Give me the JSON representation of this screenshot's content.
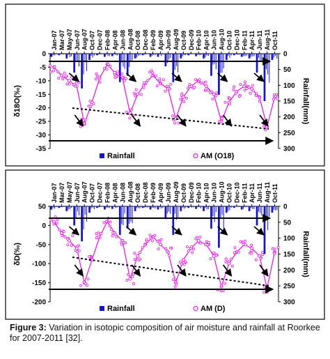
{
  "figure": {
    "caption_label": "Figure 3:",
    "caption_text": " Variation in isotopic composition of air moisture and rainfall at Roorkee for 2007-2011 [32]."
  },
  "chart_data": [
    {
      "type": "line",
      "ylabel": "δ18O(‰)",
      "y2label": "Rainfall(mm)",
      "ylim": [
        -35,
        0
      ],
      "y2lim": [
        0,
        300
      ],
      "y2_inverted": true,
      "yticks": [
        "0",
        "-5",
        "-10",
        "-15",
        "-20",
        "-25",
        "-30",
        "-35"
      ],
      "y2ticks": [
        "0",
        "50",
        "100",
        "150",
        "200",
        "250",
        "300"
      ],
      "x_categories": [
        "Jan-07",
        "Mar-07",
        "May-07",
        "Jun-07",
        "Aug-07",
        "Oct-07",
        "Dec-07",
        "Feb-08",
        "Apr-08",
        "Jun-08",
        "Aug-08",
        "Oct-08",
        "Dec-08",
        "Feb-09",
        "Apr-09",
        "Jun-09",
        "Aug-09",
        "Oct-09",
        "Dec-09",
        "Feb-10",
        "Apr-10",
        "Jun-10",
        "Aug-10",
        "Oct-10",
        "Dec-10",
        "Feb-11",
        "Apr-11",
        "Jun-11",
        "Aug-11",
        "Oct-11"
      ],
      "legend": [
        {
          "name": "Rainfall",
          "color": "#1414c8",
          "marker": "square"
        },
        {
          "name": "AM (O18)",
          "color": "#e020e0",
          "marker": "circle"
        }
      ],
      "series": [
        {
          "name": "AM (O18)",
          "x": [
            "Jan-07",
            "Mar-07",
            "May-07",
            "Jun-07",
            "Aug-07",
            "Oct-07",
            "Dec-07",
            "Feb-08",
            "Apr-08",
            "Jun-08",
            "Aug-08",
            "Oct-08",
            "Dec-08",
            "Feb-09",
            "Apr-09",
            "Jun-09",
            "Aug-09",
            "Oct-09",
            "Dec-09",
            "Feb-10",
            "Apr-10",
            "Jun-10",
            "Aug-10",
            "Oct-10",
            "Dec-10",
            "Feb-11",
            "Apr-11",
            "Jun-11",
            "Aug-11",
            "Oct-11"
          ],
          "values": [
            -5,
            -8,
            -10,
            -12,
            -26,
            -18,
            -9,
            -4,
            -7,
            -9,
            -22,
            -15,
            -11,
            -8,
            -11,
            -13,
            -24,
            -16,
            -12,
            -10,
            -12,
            -15,
            -25,
            -18,
            -14,
            -12,
            -13,
            -16,
            -27,
            -16
          ]
        },
        {
          "name": "Rainfall",
          "x": [
            "Jan-07",
            "Mar-07",
            "May-07",
            "Jun-07",
            "Aug-07",
            "Oct-07",
            "Dec-07",
            "Feb-08",
            "Apr-08",
            "Jun-08",
            "Aug-08",
            "Oct-08",
            "Dec-08",
            "Feb-09",
            "Apr-09",
            "Jun-09",
            "Aug-09",
            "Oct-09",
            "Dec-09",
            "Feb-10",
            "Apr-10",
            "Jun-10",
            "Aug-10",
            "Oct-10",
            "Dec-10",
            "Feb-11",
            "Apr-11",
            "Jun-11",
            "Aug-11",
            "Oct-11"
          ],
          "values": [
            10,
            5,
            15,
            60,
            110,
            20,
            5,
            10,
            8,
            90,
            70,
            15,
            5,
            10,
            10,
            40,
            90,
            15,
            5,
            8,
            15,
            70,
            130,
            20,
            5,
            10,
            15,
            60,
            150,
            20
          ]
        }
      ]
    },
    {
      "type": "line",
      "ylabel": "δD(‰)",
      "y2label": "Rainfall(mm)",
      "ylim": [
        -200,
        50
      ],
      "y2lim": [
        0,
        300
      ],
      "y2_inverted": true,
      "yticks": [
        "50",
        "0",
        "-50",
        "-100",
        "-150",
        "-200"
      ],
      "y2ticks": [
        "0",
        "50",
        "100",
        "150",
        "200",
        "250",
        "300"
      ],
      "x_categories": [
        "Jan-07",
        "Mar-07",
        "May-07",
        "Jun-07",
        "Aug-07",
        "Oct-07",
        "Dec-07",
        "Feb-08",
        "Apr-08",
        "Jun-08",
        "Aug-08",
        "Oct-08",
        "Dec-08",
        "Feb-09",
        "Apr-09",
        "Jun-09",
        "Aug-09",
        "Oct-09",
        "Dec-09",
        "Feb-10",
        "Apr-10",
        "Jun-10",
        "Aug-10",
        "Oct-10",
        "Dec-10",
        "Feb-11",
        "Apr-11",
        "Jun-11",
        "Aug-11",
        "Oct-11"
      ],
      "legend": [
        {
          "name": "Rainfall",
          "color": "#1414c8",
          "marker": "square"
        },
        {
          "name": "AM (D)",
          "color": "#e020e0",
          "marker": "circle"
        }
      ],
      "series": [
        {
          "name": "AM (D)",
          "x": [
            "Jan-07",
            "Mar-07",
            "May-07",
            "Jun-07",
            "Aug-07",
            "Oct-07",
            "Dec-07",
            "Feb-08",
            "Apr-08",
            "Jun-08",
            "Aug-08",
            "Oct-08",
            "Dec-08",
            "Feb-09",
            "Apr-09",
            "Jun-09",
            "Aug-09",
            "Oct-09",
            "Dec-09",
            "Feb-10",
            "Apr-10",
            "Jun-10",
            "Aug-10",
            "Oct-10",
            "Dec-10",
            "Feb-11",
            "Apr-11",
            "Jun-11",
            "Aug-11",
            "Oct-11"
          ],
          "values": [
            10,
            -20,
            -40,
            -60,
            -150,
            -90,
            -30,
            10,
            -20,
            -40,
            -140,
            -80,
            -50,
            -30,
            -50,
            -70,
            -150,
            -90,
            -60,
            -40,
            -50,
            -80,
            -160,
            -100,
            -70,
            -50,
            -60,
            -80,
            -165,
            -70
          ]
        },
        {
          "name": "Rainfall",
          "x": [
            "Jan-07",
            "Mar-07",
            "May-07",
            "Jun-07",
            "Aug-07",
            "Oct-07",
            "Dec-07",
            "Feb-08",
            "Apr-08",
            "Jun-08",
            "Aug-08",
            "Oct-08",
            "Dec-08",
            "Feb-09",
            "Apr-09",
            "Jun-09",
            "Aug-09",
            "Oct-09",
            "Dec-09",
            "Feb-10",
            "Apr-10",
            "Jun-10",
            "Aug-10",
            "Oct-10",
            "Dec-10",
            "Feb-11",
            "Apr-11",
            "Jun-11",
            "Aug-11",
            "Oct-11"
          ],
          "values": [
            10,
            5,
            15,
            60,
            110,
            20,
            5,
            10,
            8,
            90,
            70,
            15,
            5,
            10,
            10,
            40,
            90,
            15,
            5,
            8,
            15,
            70,
            130,
            20,
            5,
            10,
            15,
            60,
            150,
            20
          ]
        }
      ]
    }
  ]
}
